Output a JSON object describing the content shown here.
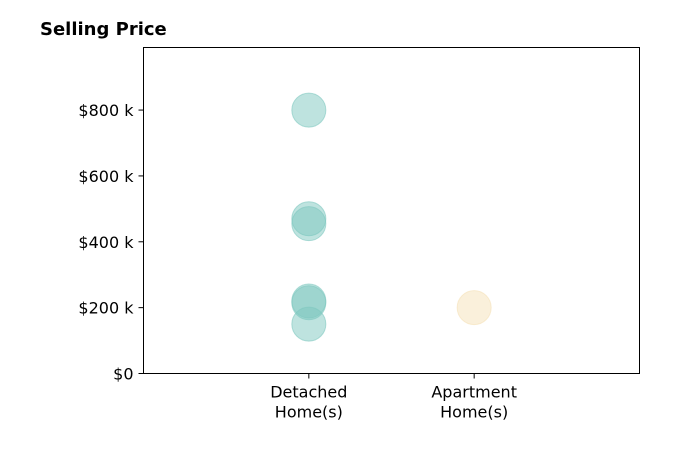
{
  "chart_data": {
    "type": "scatter",
    "title": "Selling Price",
    "xlabel": "",
    "ylabel": "",
    "categories": [
      [
        "Detached",
        "Home(s)"
      ],
      [
        "Apartment",
        "Home(s)"
      ]
    ],
    "ylim": [
      0,
      990000
    ],
    "xlim": [
      -1,
      2
    ],
    "yticks": [
      {
        "value": 0,
        "label": "$0"
      },
      {
        "value": 200000,
        "label": "$200 k"
      },
      {
        "value": 400000,
        "label": "$400 k"
      },
      {
        "value": 600000,
        "label": "$600 k"
      },
      {
        "value": 800000,
        "label": "$800 k"
      }
    ],
    "grid": false,
    "series": [
      {
        "category": "Detached Home(s)",
        "color": "#7ec8c0",
        "values": [
          800000,
          470000,
          455000,
          220000,
          215000,
          150000
        ]
      },
      {
        "category": "Apartment Home(s)",
        "color": "#f5e1b8",
        "values": [
          200000
        ]
      }
    ]
  }
}
